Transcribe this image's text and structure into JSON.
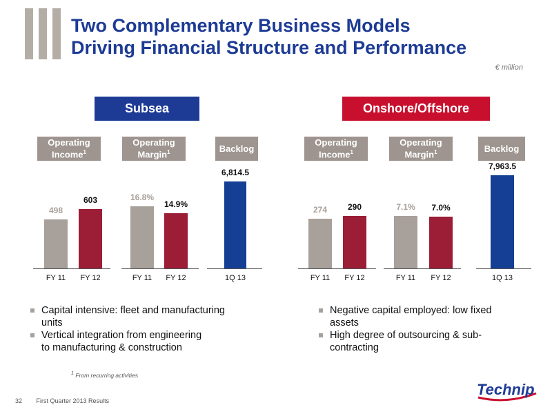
{
  "header": {
    "title_line1": "Two Complementary Business Models",
    "title_line2": "Driving Financial Structure and Performance",
    "unit": "€ million"
  },
  "colors": {
    "title": "#1d3b95",
    "subsea": "#1d3b95",
    "onshore": "#c8102e",
    "prior_bar": "#a8a09a",
    "current_bar": "#9b1d36",
    "backlog_bar": "#153f95",
    "metric_header": "#9e9590"
  },
  "sections": [
    {
      "name": "Subsea",
      "metrics": [
        {
          "label": "Operating",
          "label2": "Income",
          "footnote_mark": "1"
        },
        {
          "label": "Operating",
          "label2": "Margin",
          "footnote_mark": "1"
        },
        {
          "label": "Backlog"
        }
      ],
      "bullets": [
        {
          "line1": "Capital intensive: fleet and manufacturing",
          "line2": "units"
        },
        {
          "line1": "Vertical integration from engineering",
          "line2": "to manufacturing & construction"
        }
      ]
    },
    {
      "name": "Onshore/Offshore",
      "metrics": [
        {
          "label": "Operating",
          "label2": "Income",
          "footnote_mark": "1"
        },
        {
          "label": "Operating",
          "label2": "Margin",
          "footnote_mark": "1"
        },
        {
          "label": "Backlog"
        }
      ],
      "bullets": [
        {
          "line1": "Negative capital employed: low fixed",
          "line2": "assets"
        },
        {
          "line1": "High degree of outsourcing & sub-",
          "line2": "contracting"
        }
      ]
    }
  ],
  "chart_data": [
    {
      "type": "bar",
      "section": "Subsea",
      "metric": "Operating Income",
      "categories": [
        "FY 11",
        "FY 12"
      ],
      "values": [
        498,
        603
      ],
      "labels": [
        "498",
        "603"
      ]
    },
    {
      "type": "bar",
      "section": "Subsea",
      "metric": "Operating Margin",
      "categories": [
        "FY 11",
        "FY 12"
      ],
      "values": [
        16.8,
        14.9
      ],
      "labels": [
        "16.8%",
        "14.9%"
      ]
    },
    {
      "type": "bar",
      "section": "Subsea",
      "metric": "Backlog",
      "categories": [
        "1Q 13"
      ],
      "values": [
        6814.5
      ],
      "labels": [
        "6,814.5"
      ]
    },
    {
      "type": "bar",
      "section": "Onshore/Offshore",
      "metric": "Operating Income",
      "categories": [
        "FY 11",
        "FY 12"
      ],
      "values": [
        274,
        290
      ],
      "labels": [
        "274",
        "290"
      ]
    },
    {
      "type": "bar",
      "section": "Onshore/Offshore",
      "metric": "Operating Margin",
      "categories": [
        "FY 11",
        "FY 12"
      ],
      "values": [
        7.1,
        7.0
      ],
      "labels": [
        "7.1%",
        "7.0%"
      ]
    },
    {
      "type": "bar",
      "section": "Onshore/Offshore",
      "metric": "Backlog",
      "categories": [
        "1Q 13"
      ],
      "values": [
        7963.5
      ],
      "labels": [
        "7,963.5"
      ]
    }
  ],
  "footnote": {
    "mark": "1",
    "text": "From recurring activities"
  },
  "footer": {
    "page_number": "32",
    "text": "First Quarter 2013 Results"
  },
  "logo": {
    "text": "Technip"
  }
}
